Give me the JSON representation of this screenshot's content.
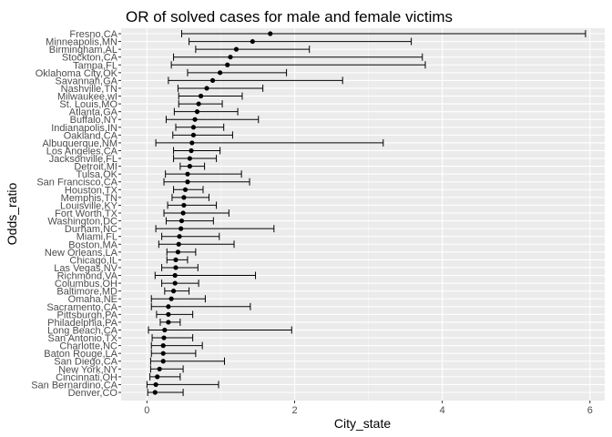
{
  "chart_data": {
    "type": "scatter",
    "title": "OR of solved cases for male and female victims",
    "xlabel": "City_state",
    "ylabel": "Odds_ratio",
    "xlim": [
      -0.35,
      6.2
    ],
    "x_ticks": [
      0,
      2,
      4,
      6
    ],
    "grid": true,
    "cities": [
      "Fresno,CA",
      "Minneapolis,MN",
      "Birmingham,AL",
      "Stockton,CA",
      "Tampa,FL",
      "Oklahoma City,OK",
      "Savannah,GA",
      "Nashville,TN",
      "Milwaukee,wI",
      "St. Louis,MO",
      "Atlanta,GA",
      "Buffalo,NY",
      "Indianapolis,IN",
      "Oakland,CA",
      "Albuquerque,NM",
      "Los Angeles,CA",
      "Jacksonville,FL",
      "Detroit,MI",
      "Tulsa,OK",
      "San Francisco,CA",
      "Houston,TX",
      "Memphis,TN",
      "Louisville,KY",
      "Fort Worth,TX",
      "Washington,DC",
      "Durham,NC",
      "Miami,FL",
      "Boston,MA",
      "New Orleans,LA",
      "Chicago,IL",
      "Las Vegas,NV",
      "Richmond,VA",
      "Columbus,OH",
      "Baltimore,MD",
      "Omaha,NE",
      "Sacramento,CA",
      "Pittsburgh,PA",
      "Philadelphia,PA",
      "Long Beach,CA",
      "San Antonio,TX",
      "Charlotte,NC",
      "Baton Rouge,LA",
      "San Diego,CA",
      "New York,NY",
      "Cincinnati,OH",
      "San Bernardino,CA",
      "Denver,CO"
    ],
    "or": [
      1.67,
      1.43,
      1.21,
      1.13,
      1.09,
      0.99,
      0.89,
      0.81,
      0.73,
      0.7,
      0.68,
      0.65,
      0.63,
      0.63,
      0.61,
      0.6,
      0.58,
      0.58,
      0.55,
      0.55,
      0.52,
      0.5,
      0.5,
      0.49,
      0.47,
      0.46,
      0.44,
      0.43,
      0.42,
      0.39,
      0.39,
      0.38,
      0.38,
      0.36,
      0.33,
      0.29,
      0.29,
      0.29,
      0.24,
      0.23,
      0.22,
      0.22,
      0.22,
      0.17,
      0.14,
      0.12,
      0.11
    ],
    "lower": [
      0.47,
      0.57,
      0.66,
      0.36,
      0.33,
      0.55,
      0.29,
      0.42,
      0.43,
      0.43,
      0.37,
      0.26,
      0.39,
      0.35,
      0.12,
      0.36,
      0.36,
      0.45,
      0.25,
      0.23,
      0.36,
      0.34,
      0.28,
      0.23,
      0.26,
      0.12,
      0.2,
      0.16,
      0.27,
      0.27,
      0.2,
      0.11,
      0.2,
      0.24,
      0.06,
      0.06,
      0.13,
      0.18,
      0.02,
      0.07,
      0.06,
      0.06,
      0.05,
      0.05,
      0.04,
      0.0,
      0.01
    ],
    "upper": [
      5.94,
      3.58,
      2.2,
      3.73,
      3.77,
      1.89,
      2.65,
      1.57,
      1.29,
      1.02,
      1.23,
      1.51,
      1.04,
      1.16,
      3.2,
      0.99,
      0.94,
      0.78,
      1.28,
      1.39,
      0.76,
      0.84,
      0.94,
      1.11,
      0.9,
      1.72,
      0.98,
      1.18,
      0.66,
      0.55,
      0.69,
      1.47,
      0.7,
      0.57,
      0.79,
      1.4,
      0.62,
      0.45,
      1.96,
      0.62,
      0.75,
      0.66,
      1.05,
      0.49,
      0.45,
      0.97,
      0.49
    ]
  }
}
